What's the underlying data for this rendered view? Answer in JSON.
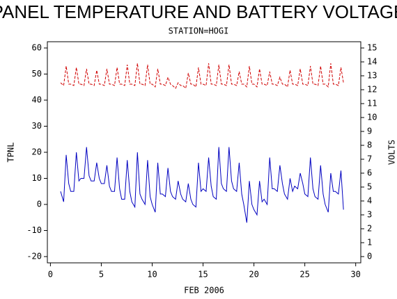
{
  "chart_data": {
    "type": "line",
    "title": "PANEL TEMPERATURE AND BATTERY VOLTAGE",
    "subtitle": "STATION=HOGI",
    "x_label": "FEB 2006",
    "y_label": "TPNL",
    "y2_label": "VOLTS",
    "xlim": [
      -0.3,
      30.5
    ],
    "xticks": [
      0,
      5,
      10,
      15,
      20,
      25,
      30
    ],
    "ylim": [
      -22.4,
      62.4
    ],
    "yticks": [
      -20,
      -10,
      0,
      10,
      20,
      30,
      40,
      50,
      60
    ],
    "y2lim": [
      -0.45,
      15.45
    ],
    "y2ticks": [
      0,
      1,
      2,
      3,
      4,
      5,
      6,
      7,
      8,
      9,
      10,
      11,
      12,
      13,
      14,
      15
    ],
    "x": [
      1,
      1.3,
      1.55,
      1.8,
      2,
      2.3,
      2.55,
      2.8,
      3,
      3.3,
      3.55,
      3.8,
      4,
      4.3,
      4.55,
      4.8,
      5,
      5.3,
      5.55,
      5.8,
      6,
      6.3,
      6.55,
      6.8,
      7,
      7.3,
      7.55,
      7.8,
      8,
      8.3,
      8.55,
      8.8,
      9,
      9.3,
      9.55,
      9.8,
      10,
      10.3,
      10.55,
      10.8,
      11,
      11.3,
      11.55,
      11.8,
      12,
      12.3,
      12.55,
      12.8,
      13,
      13.3,
      13.55,
      13.8,
      14,
      14.3,
      14.55,
      14.8,
      15,
      15.3,
      15.55,
      15.8,
      16,
      16.3,
      16.55,
      16.8,
      17,
      17.3,
      17.55,
      17.8,
      18,
      18.3,
      18.55,
      18.8,
      19,
      19.3,
      19.55,
      19.8,
      20,
      20.3,
      20.55,
      20.8,
      21,
      21.3,
      21.55,
      21.8,
      22,
      22.3,
      22.55,
      22.8,
      23,
      23.3,
      23.55,
      23.8,
      24,
      24.3,
      24.55,
      24.8,
      25,
      25.3,
      25.55,
      25.8,
      26,
      26.3,
      26.55,
      26.8,
      27,
      27.3,
      27.55,
      27.8,
      28,
      28.3,
      28.55,
      28.8
    ],
    "series": [
      {
        "name": "TPNL",
        "color": "#0000c0",
        "linestyle": "solid",
        "values": [
          5,
          1,
          19,
          8,
          5,
          5,
          20,
          9,
          10,
          10,
          22,
          11,
          9,
          9,
          16,
          10,
          8,
          8,
          15,
          7,
          5,
          5,
          18,
          6,
          2,
          2,
          17,
          5,
          1,
          -1,
          20,
          4,
          2,
          0,
          17,
          3,
          0,
          -3,
          16,
          4,
          4,
          3,
          14,
          5,
          3,
          2,
          9,
          4,
          2,
          1,
          8,
          2,
          0,
          -1,
          16,
          5,
          6,
          5,
          18,
          7,
          3,
          2,
          22,
          8,
          6,
          5,
          22,
          9,
          6,
          5,
          16,
          4,
          0,
          -7,
          9,
          0,
          -2,
          -4,
          9,
          1,
          2,
          0,
          18,
          6,
          6,
          5,
          15,
          8,
          4,
          2,
          10,
          5,
          7,
          6,
          12,
          8,
          4,
          3,
          18,
          6,
          3,
          2,
          15,
          4,
          0,
          -3,
          12,
          5,
          5,
          4,
          13,
          -2
        ]
      },
      {
        "name": "VOLTS",
        "color": "#d00000",
        "linestyle": "dashed",
        "axis": "y2",
        "values": [
          12.5,
          12.3,
          13.7,
          12.4,
          12.4,
          12.3,
          13.6,
          12.4,
          12.4,
          12.3,
          13.5,
          12.4,
          12.4,
          12.3,
          13.4,
          12.4,
          12.4,
          12.3,
          13.5,
          12.4,
          12.4,
          12.3,
          13.6,
          12.4,
          12.4,
          12.3,
          13.8,
          12.4,
          12.4,
          12.3,
          13.9,
          12.4,
          12.4,
          12.3,
          13.8,
          12.4,
          12.4,
          12.2,
          13.5,
          12.4,
          12.4,
          12.3,
          12.9,
          12.4,
          12.3,
          12.1,
          12.5,
          12.3,
          12.3,
          12.1,
          13.2,
          12.4,
          12.4,
          12.2,
          13.6,
          12.4,
          12.4,
          12.3,
          13.9,
          12.4,
          12.4,
          12.3,
          13.8,
          12.4,
          12.4,
          12.3,
          13.8,
          12.4,
          12.4,
          12.3,
          13.3,
          12.4,
          12.4,
          12.2,
          13.7,
          12.4,
          12.4,
          12.2,
          13.5,
          12.4,
          12.4,
          12.3,
          13.3,
          12.4,
          12.4,
          12.3,
          12.9,
          12.4,
          12.4,
          12.2,
          13.4,
          12.4,
          12.4,
          12.3,
          13.5,
          12.4,
          12.4,
          12.3,
          13.7,
          12.4,
          12.4,
          12.3,
          13.7,
          12.4,
          12.4,
          12.2,
          13.9,
          12.4,
          12.4,
          12.3,
          13.6,
          12.5
        ]
      }
    ]
  }
}
